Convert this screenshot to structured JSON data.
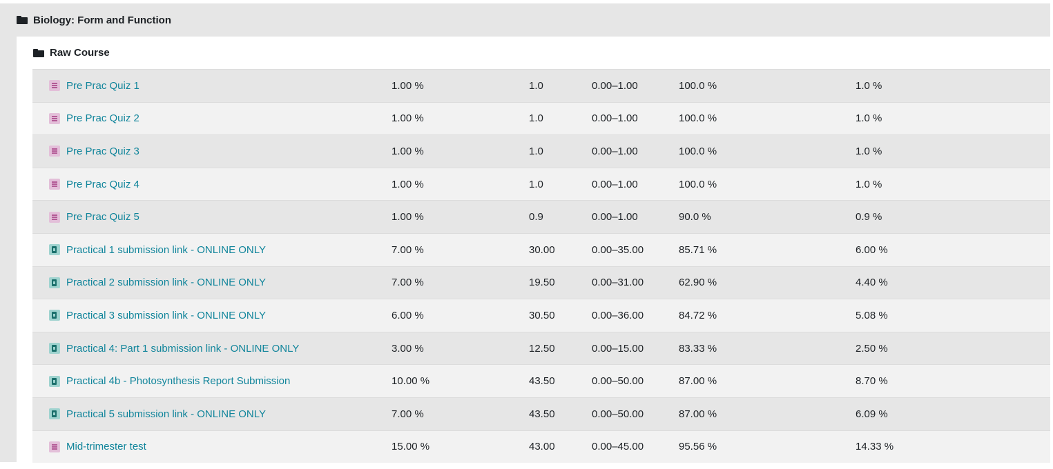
{
  "category": {
    "title": "Biology: Form and Function"
  },
  "subcategory": {
    "title": "Raw Course"
  },
  "items": [
    {
      "name": "Pre Prac Quiz 1",
      "type": "quiz",
      "weight": "1.00 %",
      "grade": "1.0",
      "range": "0.00–1.00",
      "percentage": "100.0 %",
      "contribution": "1.0 %"
    },
    {
      "name": "Pre Prac Quiz 2",
      "type": "quiz",
      "weight": "1.00 %",
      "grade": "1.0",
      "range": "0.00–1.00",
      "percentage": "100.0 %",
      "contribution": "1.0 %"
    },
    {
      "name": "Pre Prac Quiz 3",
      "type": "quiz",
      "weight": "1.00 %",
      "grade": "1.0",
      "range": "0.00–1.00",
      "percentage": "100.0 %",
      "contribution": "1.0 %"
    },
    {
      "name": "Pre Prac Quiz 4",
      "type": "quiz",
      "weight": "1.00 %",
      "grade": "1.0",
      "range": "0.00–1.00",
      "percentage": "100.0 %",
      "contribution": "1.0 %"
    },
    {
      "name": "Pre Prac Quiz 5",
      "type": "quiz",
      "weight": "1.00 %",
      "grade": "0.9",
      "range": "0.00–1.00",
      "percentage": "90.0 %",
      "contribution": "0.9 %"
    },
    {
      "name": "Practical 1 submission link - ONLINE ONLY",
      "type": "assign",
      "weight": "7.00 %",
      "grade": "30.00",
      "range": "0.00–35.00",
      "percentage": "85.71 %",
      "contribution": "6.00 %"
    },
    {
      "name": "Practical 2 submission link - ONLINE ONLY",
      "type": "assign",
      "weight": "7.00 %",
      "grade": "19.50",
      "range": "0.00–31.00",
      "percentage": "62.90 %",
      "contribution": "4.40 %"
    },
    {
      "name": "Practical 3 submission link - ONLINE ONLY",
      "type": "assign",
      "weight": "6.00 %",
      "grade": "30.50",
      "range": "0.00–36.00",
      "percentage": "84.72 %",
      "contribution": "5.08 %"
    },
    {
      "name": "Practical 4: Part 1 submission link - ONLINE ONLY",
      "type": "assign",
      "weight": "3.00 %",
      "grade": "12.50",
      "range": "0.00–15.00",
      "percentage": "83.33 %",
      "contribution": "2.50 %"
    },
    {
      "name": "Practical 4b - Photosynthesis Report Submission",
      "type": "assign",
      "weight": "10.00 %",
      "grade": "43.50",
      "range": "0.00–50.00",
      "percentage": "87.00 %",
      "contribution": "8.70 %"
    },
    {
      "name": "Practical 5 submission link - ONLINE ONLY",
      "type": "assign",
      "weight": "7.00 %",
      "grade": "43.50",
      "range": "0.00–50.00",
      "percentage": "87.00 %",
      "contribution": "6.09 %"
    },
    {
      "name": "Mid-trimester test",
      "type": "quiz",
      "weight": "15.00 %",
      "grade": "43.00",
      "range": "0.00–45.00",
      "percentage": "95.56 %",
      "contribution": "14.33 %"
    }
  ],
  "icons": {
    "category": "folder-icon",
    "quiz": "quiz-icon",
    "assign": "assignment-icon"
  },
  "colors": {
    "link": "#11859b",
    "row_odd": "#e6e6e6",
    "row_even": "#f2f2f2"
  }
}
